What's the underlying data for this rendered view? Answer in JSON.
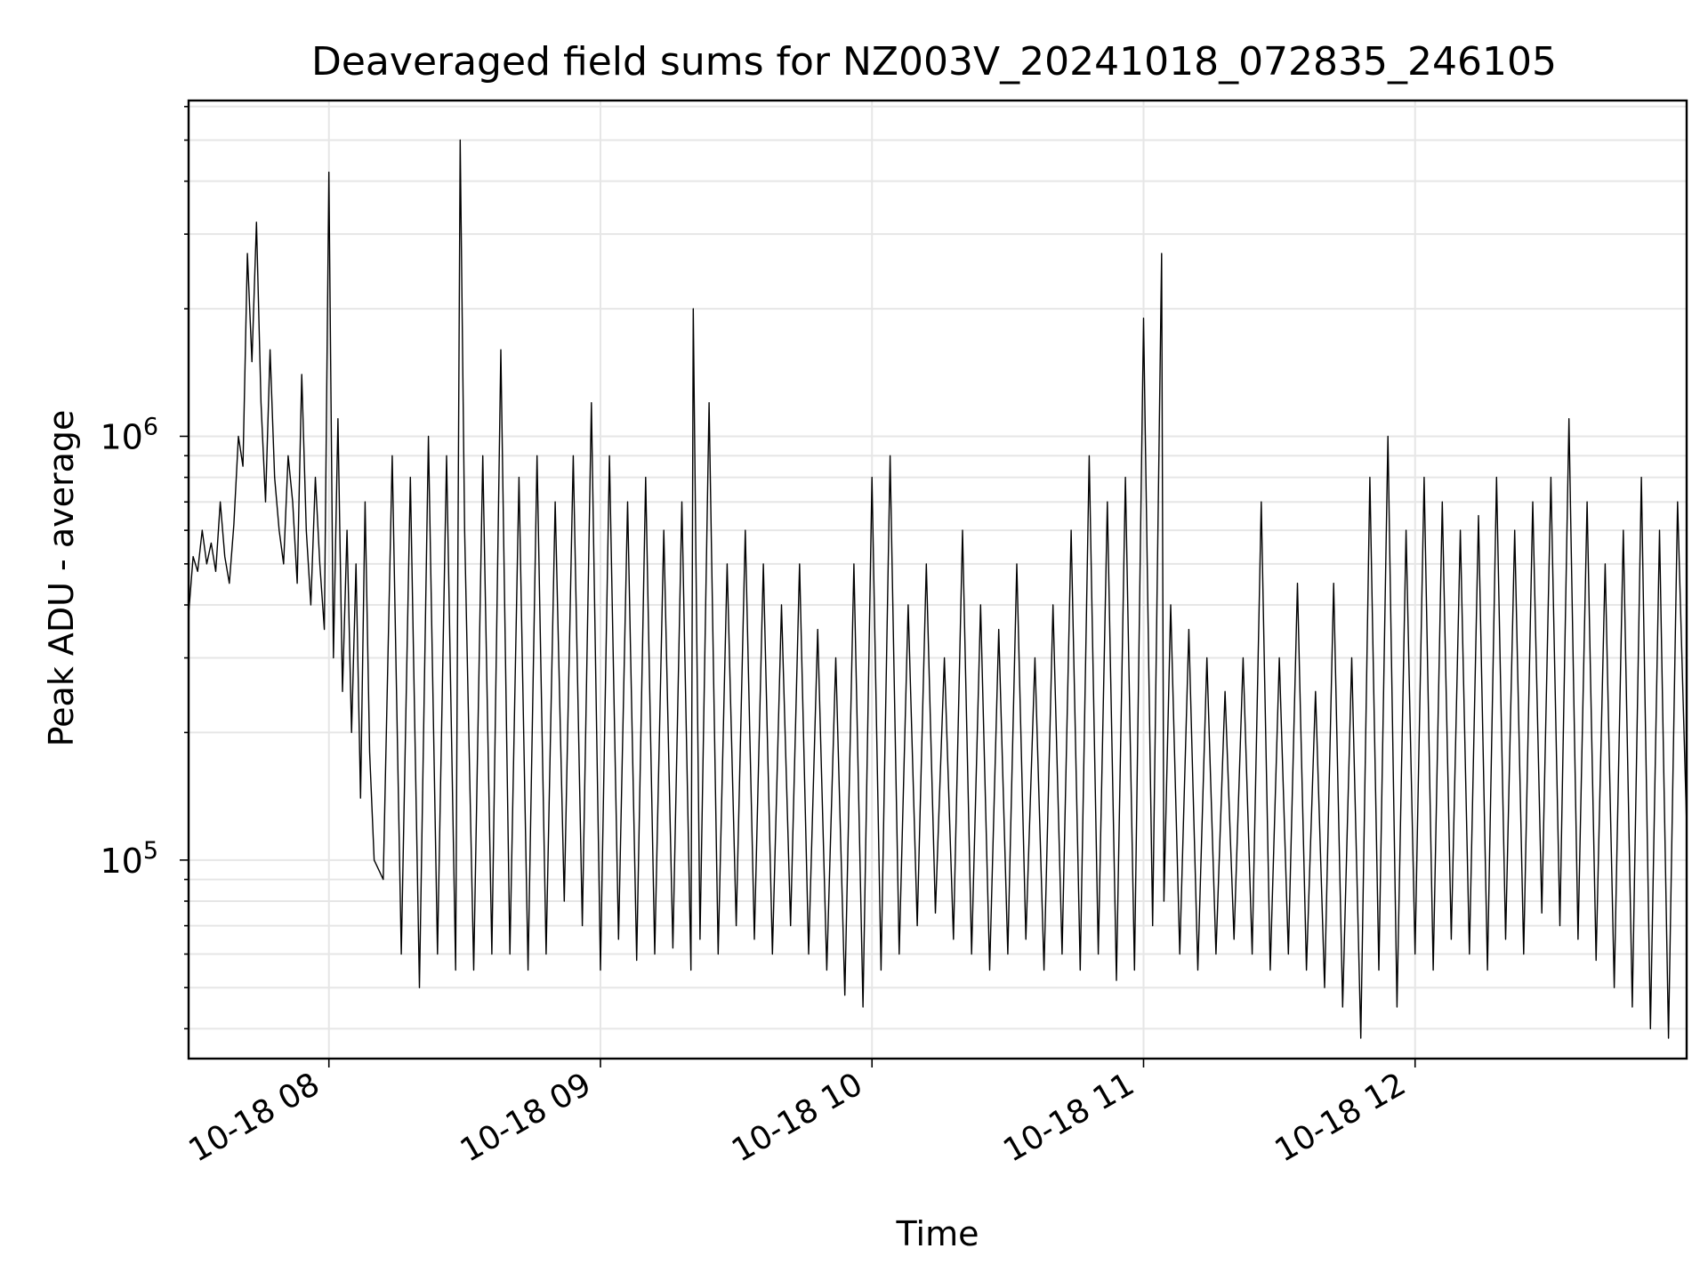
{
  "chart_data": {
    "type": "line",
    "title": "Deaveraged field sums for NZ003V_20241018_072835_246105",
    "xlabel": "Time",
    "ylabel": "Peak ADU - average",
    "y_scale": "log",
    "ylim": [
      34000,
      6200000
    ],
    "xlim": [
      "2024-10-18 07:29:00",
      "2024-10-18 13:00:00"
    ],
    "x_ticks": [
      {
        "time": "2024-10-18 08:00:00",
        "label": "10-18 08"
      },
      {
        "time": "2024-10-18 09:00:00",
        "label": "10-18 09"
      },
      {
        "time": "2024-10-18 10:00:00",
        "label": "10-18 10"
      },
      {
        "time": "2024-10-18 11:00:00",
        "label": "10-18 11"
      },
      {
        "time": "2024-10-18 12:00:00",
        "label": "10-18 12"
      }
    ],
    "y_ticks": [
      {
        "value": 100000,
        "label_base": "10",
        "label_exp": "5"
      },
      {
        "value": 1000000,
        "label_base": "10",
        "label_exp": "6"
      }
    ],
    "grid": true,
    "line_color": "#000000",
    "grid_color": "#e6e6e6",
    "series": [
      {
        "x": [
          "2024-10-18 07:29:00",
          "2024-10-18 07:30:00",
          "2024-10-18 07:31:00",
          "2024-10-18 07:32:00",
          "2024-10-18 07:33:00",
          "2024-10-18 07:34:00",
          "2024-10-18 07:35:00",
          "2024-10-18 07:36:00",
          "2024-10-18 07:37:00",
          "2024-10-18 07:38:00",
          "2024-10-18 07:39:00",
          "2024-10-18 07:40:00",
          "2024-10-18 07:41:00",
          "2024-10-18 07:42:00",
          "2024-10-18 07:43:00",
          "2024-10-18 07:44:00",
          "2024-10-18 07:45:00",
          "2024-10-18 07:46:00",
          "2024-10-18 07:47:00",
          "2024-10-18 07:48:00",
          "2024-10-18 07:49:00",
          "2024-10-18 07:50:00",
          "2024-10-18 07:51:00",
          "2024-10-18 07:52:00",
          "2024-10-18 07:53:00",
          "2024-10-18 07:54:00",
          "2024-10-18 07:55:00",
          "2024-10-18 07:56:00",
          "2024-10-18 07:57:00",
          "2024-10-18 07:58:00",
          "2024-10-18 07:59:00",
          "2024-10-18 08:00:00",
          "2024-10-18 08:01:00",
          "2024-10-18 08:02:00",
          "2024-10-18 08:03:00",
          "2024-10-18 08:04:00",
          "2024-10-18 08:05:00",
          "2024-10-18 08:06:00",
          "2024-10-18 08:07:00",
          "2024-10-18 08:08:00",
          "2024-10-18 08:09:00",
          "2024-10-18 08:10:00",
          "2024-10-18 08:12:00",
          "2024-10-18 08:14:00",
          "2024-10-18 08:16:00",
          "2024-10-18 08:18:00",
          "2024-10-18 08:20:00",
          "2024-10-18 08:22:00",
          "2024-10-18 08:24:00",
          "2024-10-18 08:26:00",
          "2024-10-18 08:28:00",
          "2024-10-18 08:29:00",
          "2024-10-18 08:30:00",
          "2024-10-18 08:32:00",
          "2024-10-18 08:34:00",
          "2024-10-18 08:36:00",
          "2024-10-18 08:38:00",
          "2024-10-18 08:40:00",
          "2024-10-18 08:42:00",
          "2024-10-18 08:44:00",
          "2024-10-18 08:46:00",
          "2024-10-18 08:48:00",
          "2024-10-18 08:50:00",
          "2024-10-18 08:52:00",
          "2024-10-18 08:54:00",
          "2024-10-18 08:56:00",
          "2024-10-18 08:58:00",
          "2024-10-18 09:00:00",
          "2024-10-18 09:02:00",
          "2024-10-18 09:04:00",
          "2024-10-18 09:06:00",
          "2024-10-18 09:08:00",
          "2024-10-18 09:10:00",
          "2024-10-18 09:12:00",
          "2024-10-18 09:14:00",
          "2024-10-18 09:16:00",
          "2024-10-18 09:18:00",
          "2024-10-18 09:20:00",
          "2024-10-18 09:20:30",
          "2024-10-18 09:22:00",
          "2024-10-18 09:24:00",
          "2024-10-18 09:26:00",
          "2024-10-18 09:28:00",
          "2024-10-18 09:30:00",
          "2024-10-18 09:32:00",
          "2024-10-18 09:34:00",
          "2024-10-18 09:36:00",
          "2024-10-18 09:38:00",
          "2024-10-18 09:40:00",
          "2024-10-18 09:42:00",
          "2024-10-18 09:44:00",
          "2024-10-18 09:46:00",
          "2024-10-18 09:48:00",
          "2024-10-18 09:50:00",
          "2024-10-18 09:52:00",
          "2024-10-18 09:54:00",
          "2024-10-18 09:56:00",
          "2024-10-18 09:58:00",
          "2024-10-18 10:00:00",
          "2024-10-18 10:02:00",
          "2024-10-18 10:04:00",
          "2024-10-18 10:06:00",
          "2024-10-18 10:08:00",
          "2024-10-18 10:10:00",
          "2024-10-18 10:12:00",
          "2024-10-18 10:14:00",
          "2024-10-18 10:16:00",
          "2024-10-18 10:18:00",
          "2024-10-18 10:20:00",
          "2024-10-18 10:22:00",
          "2024-10-18 10:24:00",
          "2024-10-18 10:26:00",
          "2024-10-18 10:28:00",
          "2024-10-18 10:30:00",
          "2024-10-18 10:32:00",
          "2024-10-18 10:34:00",
          "2024-10-18 10:36:00",
          "2024-10-18 10:38:00",
          "2024-10-18 10:40:00",
          "2024-10-18 10:42:00",
          "2024-10-18 10:44:00",
          "2024-10-18 10:46:00",
          "2024-10-18 10:48:00",
          "2024-10-18 10:50:00",
          "2024-10-18 10:52:00",
          "2024-10-18 10:54:00",
          "2024-10-18 10:56:00",
          "2024-10-18 10:58:00",
          "2024-10-18 11:00:00",
          "2024-10-18 11:02:00",
          "2024-10-18 11:04:00",
          "2024-10-18 11:04:30",
          "2024-10-18 11:06:00",
          "2024-10-18 11:08:00",
          "2024-10-18 11:10:00",
          "2024-10-18 11:12:00",
          "2024-10-18 11:14:00",
          "2024-10-18 11:16:00",
          "2024-10-18 11:18:00",
          "2024-10-18 11:20:00",
          "2024-10-18 11:22:00",
          "2024-10-18 11:24:00",
          "2024-10-18 11:26:00",
          "2024-10-18 11:28:00",
          "2024-10-18 11:30:00",
          "2024-10-18 11:32:00",
          "2024-10-18 11:34:00",
          "2024-10-18 11:36:00",
          "2024-10-18 11:38:00",
          "2024-10-18 11:40:00",
          "2024-10-18 11:42:00",
          "2024-10-18 11:44:00",
          "2024-10-18 11:46:00",
          "2024-10-18 11:48:00",
          "2024-10-18 11:50:00",
          "2024-10-18 11:52:00",
          "2024-10-18 11:54:00",
          "2024-10-18 11:56:00",
          "2024-10-18 11:58:00",
          "2024-10-18 12:00:00",
          "2024-10-18 12:02:00",
          "2024-10-18 12:04:00",
          "2024-10-18 12:06:00",
          "2024-10-18 12:08:00",
          "2024-10-18 12:10:00",
          "2024-10-18 12:12:00",
          "2024-10-18 12:14:00",
          "2024-10-18 12:16:00",
          "2024-10-18 12:18:00",
          "2024-10-18 12:20:00",
          "2024-10-18 12:22:00",
          "2024-10-18 12:24:00",
          "2024-10-18 12:26:00",
          "2024-10-18 12:28:00",
          "2024-10-18 12:30:00",
          "2024-10-18 12:32:00",
          "2024-10-18 12:34:00",
          "2024-10-18 12:36:00",
          "2024-10-18 12:38:00",
          "2024-10-18 12:40:00",
          "2024-10-18 12:42:00",
          "2024-10-18 12:44:00",
          "2024-10-18 12:46:00",
          "2024-10-18 12:48:00",
          "2024-10-18 12:50:00",
          "2024-10-18 12:52:00",
          "2024-10-18 12:54:00",
          "2024-10-18 12:56:00",
          "2024-10-18 12:58:00",
          "2024-10-18 13:00:00"
        ],
        "y": [
          380000,
          520000,
          480000,
          600000,
          500000,
          560000,
          480000,
          700000,
          520000,
          450000,
          620000,
          1000000,
          850000,
          2700000,
          1500000,
          3200000,
          1200000,
          700000,
          1600000,
          800000,
          600000,
          500000,
          900000,
          700000,
          450000,
          1400000,
          600000,
          400000,
          800000,
          500000,
          350000,
          4200000,
          300000,
          1100000,
          250000,
          600000,
          200000,
          500000,
          140000,
          700000,
          180000,
          100000,
          90000,
          900000,
          60000,
          800000,
          50000,
          1000000,
          60000,
          900000,
          55000,
          5000000,
          600000,
          55000,
          900000,
          60000,
          1600000,
          60000,
          800000,
          55000,
          900000,
          60000,
          700000,
          80000,
          900000,
          70000,
          1200000,
          55000,
          900000,
          65000,
          700000,
          58000,
          800000,
          60000,
          600000,
          62000,
          700000,
          55000,
          2000000,
          65000,
          1200000,
          60000,
          500000,
          70000,
          600000,
          65000,
          500000,
          60000,
          400000,
          70000,
          500000,
          60000,
          350000,
          55000,
          300000,
          48000,
          500000,
          45000,
          800000,
          55000,
          900000,
          60000,
          400000,
          70000,
          500000,
          75000,
          300000,
          65000,
          600000,
          60000,
          400000,
          55000,
          350000,
          60000,
          500000,
          65000,
          300000,
          55000,
          400000,
          60000,
          600000,
          55000,
          900000,
          60000,
          700000,
          52000,
          800000,
          55000,
          1900000,
          70000,
          2700000,
          80000,
          400000,
          60000,
          350000,
          55000,
          300000,
          60000,
          250000,
          65000,
          300000,
          60000,
          700000,
          55000,
          300000,
          60000,
          450000,
          55000,
          250000,
          50000,
          450000,
          45000,
          300000,
          38000,
          800000,
          55000,
          1000000,
          45000,
          600000,
          60000,
          800000,
          55000,
          700000,
          65000,
          600000,
          60000,
          650000,
          55000,
          800000,
          65000,
          600000,
          60000,
          700000,
          75000,
          800000,
          70000,
          1100000,
          65000,
          700000,
          58000,
          500000,
          50000,
          600000,
          45000,
          800000,
          40000,
          600000,
          38000,
          700000,
          120000
        ]
      }
    ]
  }
}
